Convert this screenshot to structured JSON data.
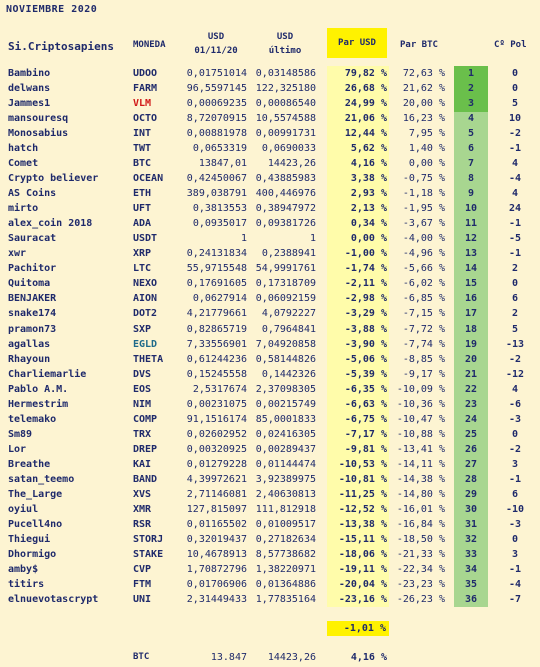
{
  "title": "NOVIEMBRE 2020",
  "headers": {
    "name": "Si.Criptosapiens",
    "moneda": "MONEDA",
    "usd1_a": "USD",
    "usd1_b": "01/11/20",
    "usd2_a": "USD",
    "usd2_b": "último",
    "par_usd": "Par USD",
    "par_btc": "Par BTC",
    "cpol": "Cº Pol"
  },
  "rows": [
    {
      "name": "Bambino",
      "coin": "UDOO",
      "v1": "0,01751014",
      "v2": "0,03148586",
      "pu": "79,82 %",
      "pb": "72,63 %",
      "rank": "1",
      "pol": "0"
    },
    {
      "name": "delwans",
      "coin": "FARM",
      "v1": "96,5597145",
      "v2": "122,325180",
      "pu": "26,68 %",
      "pb": "21,62 %",
      "rank": "2",
      "pol": "0"
    },
    {
      "name": "Jammes1",
      "coin": "VLM",
      "v1": "0,00069235",
      "v2": "0,00086540",
      "pu": "24,99 %",
      "pb": "20,00 %",
      "rank": "3",
      "pol": "5"
    },
    {
      "name": "mansouresq",
      "coin": "OCTO",
      "v1": "8,72070915",
      "v2": "10,5574588",
      "pu": "21,06 %",
      "pb": "16,23 %",
      "rank": "4",
      "pol": "10"
    },
    {
      "name": "Monosabius",
      "coin": "INT",
      "v1": "0,00881978",
      "v2": "0,00991731",
      "pu": "12,44 %",
      "pb": "7,95 %",
      "rank": "5",
      "pol": "-2"
    },
    {
      "name": "hatch",
      "coin": "TWT",
      "v1": "0,0653319",
      "v2": "0,0690033",
      "pu": "5,62 %",
      "pb": "1,40 %",
      "rank": "6",
      "pol": "-1"
    },
    {
      "name": "Comet",
      "coin": "BTC",
      "v1": "13847,01",
      "v2": "14423,26",
      "pu": "4,16 %",
      "pb": "0,00 %",
      "rank": "7",
      "pol": "4"
    },
    {
      "name": "Crypto believer",
      "coin": "OCEAN",
      "v1": "0,42450067",
      "v2": "0,43885983",
      "pu": "3,38 %",
      "pb": "-0,75 %",
      "rank": "8",
      "pol": "-4"
    },
    {
      "name": "AS Coins",
      "coin": "ETH",
      "v1": "389,038791",
      "v2": "400,446976",
      "pu": "2,93 %",
      "pb": "-1,18 %",
      "rank": "9",
      "pol": "4"
    },
    {
      "name": "mirto",
      "coin": "UFT",
      "v1": "0,3813553",
      "v2": "0,38947972",
      "pu": "2,13 %",
      "pb": "-1,95 %",
      "rank": "10",
      "pol": "24"
    },
    {
      "name": "alex_coin 2018",
      "coin": "ADA",
      "v1": "0,0935017",
      "v2": "0,09381726",
      "pu": "0,34 %",
      "pb": "-3,67 %",
      "rank": "11",
      "pol": "-1"
    },
    {
      "name": "Sauracat",
      "coin": "USDT",
      "v1": "1",
      "v2": "1",
      "pu": "0,00 %",
      "pb": "-4,00 %",
      "rank": "12",
      "pol": "-5"
    },
    {
      "name": "xwr",
      "coin": "XRP",
      "v1": "0,24131834",
      "v2": "0,2388941",
      "pu": "-1,00 %",
      "pb": "-4,96 %",
      "rank": "13",
      "pol": "-1"
    },
    {
      "name": "Pachitor",
      "coin": "LTC",
      "v1": "55,9715548",
      "v2": "54,9991761",
      "pu": "-1,74 %",
      "pb": "-5,66 %",
      "rank": "14",
      "pol": "2"
    },
    {
      "name": "Quitoma",
      "coin": "NEXO",
      "v1": "0,17691605",
      "v2": "0,17318709",
      "pu": "-2,11 %",
      "pb": "-6,02 %",
      "rank": "15",
      "pol": "0"
    },
    {
      "name": "BENJAKER",
      "coin": "AION",
      "v1": "0,0627914",
      "v2": "0,06092159",
      "pu": "-2,98 %",
      "pb": "-6,85 %",
      "rank": "16",
      "pol": "6"
    },
    {
      "name": "snake174",
      "coin": "DOT2",
      "v1": "4,21779661",
      "v2": "4,0792227",
      "pu": "-3,29 %",
      "pb": "-7,15 %",
      "rank": "17",
      "pol": "2"
    },
    {
      "name": "pramon73",
      "coin": "SXP",
      "v1": "0,82865719",
      "v2": "0,7964841",
      "pu": "-3,88 %",
      "pb": "-7,72 %",
      "rank": "18",
      "pol": "5"
    },
    {
      "name": "agallas",
      "coin": "EGLD",
      "v1": "7,33556901",
      "v2": "7,04920858",
      "pu": "-3,90 %",
      "pb": "-7,74 %",
      "rank": "19",
      "pol": "-13"
    },
    {
      "name": "Rhayoun",
      "coin": "THETA",
      "v1": "0,61244236",
      "v2": "0,58144826",
      "pu": "-5,06 %",
      "pb": "-8,85 %",
      "rank": "20",
      "pol": "-2"
    },
    {
      "name": "Charliemarlie",
      "coin": "DVS",
      "v1": "0,15245558",
      "v2": "0,1442326",
      "pu": "-5,39 %",
      "pb": "-9,17 %",
      "rank": "21",
      "pol": "-12"
    },
    {
      "name": "Pablo A.M.",
      "coin": "EOS",
      "v1": "2,5317674",
      "v2": "2,37098305",
      "pu": "-6,35 %",
      "pb": "-10,09 %",
      "rank": "22",
      "pol": "4"
    },
    {
      "name": "Hermestrim",
      "coin": "NIM",
      "v1": "0,00231075",
      "v2": "0,00215749",
      "pu": "-6,63 %",
      "pb": "-10,36 %",
      "rank": "23",
      "pol": "-6"
    },
    {
      "name": "telemako",
      "coin": "COMP",
      "v1": "91,1516174",
      "v2": "85,0001833",
      "pu": "-6,75 %",
      "pb": "-10,47 %",
      "rank": "24",
      "pol": "-3"
    },
    {
      "name": "Sm89",
      "coin": "TRX",
      "v1": "0,02602952",
      "v2": "0,02416305",
      "pu": "-7,17 %",
      "pb": "-10,88 %",
      "rank": "25",
      "pol": "0"
    },
    {
      "name": "Lor",
      "coin": "DREP",
      "v1": "0,00320925",
      "v2": "0,00289437",
      "pu": "-9,81 %",
      "pb": "-13,41 %",
      "rank": "26",
      "pol": "-2"
    },
    {
      "name": "Breathe",
      "coin": "KAI",
      "v1": "0,01279228",
      "v2": "0,01144474",
      "pu": "-10,53 %",
      "pb": "-14,11 %",
      "rank": "27",
      "pol": "3"
    },
    {
      "name": "satan_teemo",
      "coin": "BAND",
      "v1": "4,39972621",
      "v2": "3,92389975",
      "pu": "-10,81 %",
      "pb": "-14,38 %",
      "rank": "28",
      "pol": "-1"
    },
    {
      "name": "The_Large",
      "coin": "XVS",
      "v1": "2,71146081",
      "v2": "2,40630813",
      "pu": "-11,25 %",
      "pb": "-14,80 %",
      "rank": "29",
      "pol": "6"
    },
    {
      "name": "oyiul",
      "coin": "XMR",
      "v1": "127,815097",
      "v2": "111,812918",
      "pu": "-12,52 %",
      "pb": "-16,01 %",
      "rank": "30",
      "pol": "-10"
    },
    {
      "name": "Pucell4no",
      "coin": "RSR",
      "v1": "0,01165502",
      "v2": "0,01009517",
      "pu": "-13,38 %",
      "pb": "-16,84 %",
      "rank": "31",
      "pol": "-3"
    },
    {
      "name": "Thiegui",
      "coin": "STORJ",
      "v1": "0,32019437",
      "v2": "0,27182634",
      "pu": "-15,11 %",
      "pb": "-18,50 %",
      "rank": "32",
      "pol": "0"
    },
    {
      "name": "Dhormigo",
      "coin": "STAKE",
      "v1": "10,4678913",
      "v2": "8,57738682",
      "pu": "-18,06 %",
      "pb": "-21,33 %",
      "rank": "33",
      "pol": "3"
    },
    {
      "name": "amby$",
      "coin": "CVP",
      "v1": "1,70872796",
      "v2": "1,38220971",
      "pu": "-19,11 %",
      "pb": "-22,34 %",
      "rank": "34",
      "pol": "-1"
    },
    {
      "name": "titirs",
      "coin": "FTM",
      "v1": "0,01706906",
      "v2": "0,01364886",
      "pu": "-20,04 %",
      "pb": "-23,23 %",
      "rank": "35",
      "pol": "-4"
    },
    {
      "name": "elnuevotascrypt",
      "coin": "UNI",
      "v1": "2,31449433",
      "v2": "1,77835164",
      "pu": "-23,16 %",
      "pb": "-26,23 %",
      "rank": "36",
      "pol": "-7"
    }
  ],
  "colors": {
    "red_coin": "#d11919",
    "teal_coin": "#1f6a8a",
    "top_rank": "#6abf4b",
    "rank_col": "#a8d690",
    "par_usd_col": "#fffcaa",
    "header_yellow": "#fff200"
  },
  "total": "-1,01 %",
  "btc_row": {
    "label": "BTC",
    "v1": "13.847",
    "v2": "14423,26",
    "pu": "4,16 %"
  }
}
